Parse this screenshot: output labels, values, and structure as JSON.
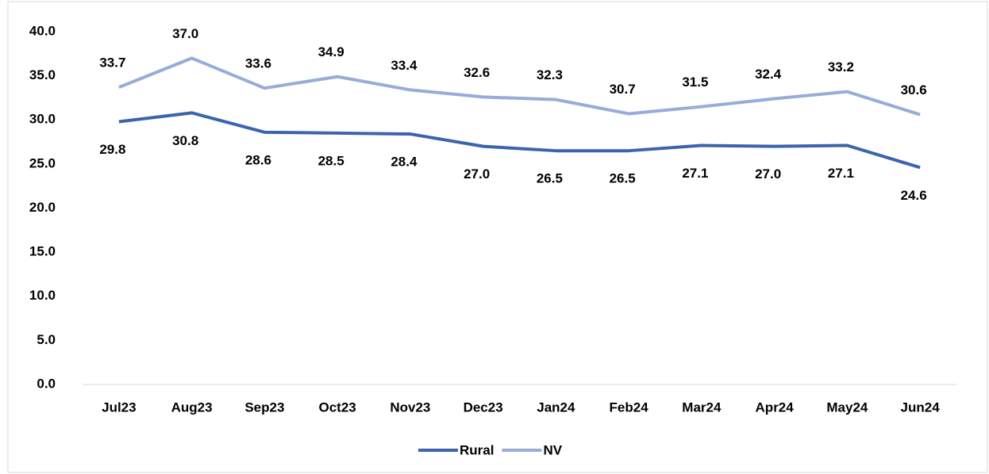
{
  "chart_data": {
    "type": "line",
    "categories": [
      "Jul23",
      "Aug23",
      "Sep23",
      "Oct23",
      "Nov23",
      "Dec23",
      "Jan24",
      "Feb24",
      "Mar24",
      "Apr24",
      "May24",
      "Jun24"
    ],
    "series": [
      {
        "name": "Rural",
        "color": "#3b64ad",
        "label_position": "below",
        "values": [
          29.8,
          30.8,
          28.6,
          28.5,
          28.4,
          27.0,
          26.5,
          26.5,
          27.1,
          27.0,
          27.1,
          24.6
        ],
        "value_labels": [
          "29.8",
          "30.8",
          "28.6",
          "28.5",
          "28.4",
          "27.0",
          "26.5",
          "26.5",
          "27.1",
          "27.0",
          "27.1",
          "24.6"
        ]
      },
      {
        "name": "NV",
        "color": "#97acd9",
        "label_position": "above",
        "values": [
          33.7,
          37.0,
          33.6,
          34.9,
          33.4,
          32.6,
          32.3,
          30.7,
          31.5,
          32.4,
          33.2,
          30.6
        ],
        "value_labels": [
          "33.7",
          "37.0",
          "33.6",
          "34.9",
          "33.4",
          "32.6",
          "32.3",
          "30.7",
          "31.5",
          "32.4",
          "33.2",
          "30.6"
        ]
      }
    ],
    "ylim": [
      0,
      40
    ],
    "yticks": [
      {
        "value": 0,
        "label": "0.0"
      },
      {
        "value": 5,
        "label": "5.0"
      },
      {
        "value": 10,
        "label": "10.0"
      },
      {
        "value": 15,
        "label": "15.0"
      },
      {
        "value": 20,
        "label": "20.0"
      },
      {
        "value": 25,
        "label": "25.0"
      },
      {
        "value": 30,
        "label": "30.0"
      },
      {
        "value": 35,
        "label": "35.0"
      },
      {
        "value": 40,
        "label": "40.0"
      }
    ],
    "grid": false,
    "legend": "bottom"
  }
}
